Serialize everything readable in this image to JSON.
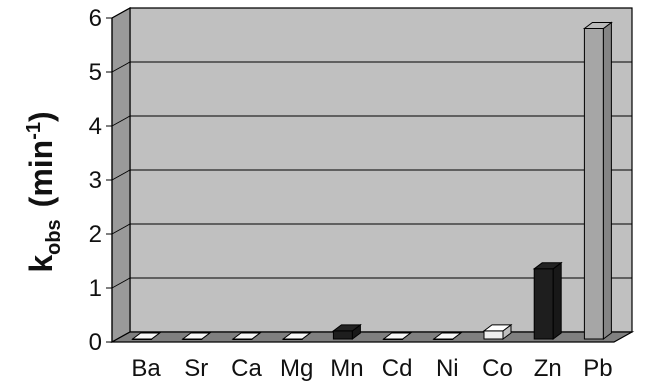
{
  "chart_data": {
    "type": "bar",
    "style": "3d-column",
    "categories": [
      "Ba",
      "Sr",
      "Ca",
      "Mg",
      "Mn",
      "Cd",
      "Ni",
      "Co",
      "Zn",
      "Pb"
    ],
    "values": [
      0.0,
      0.0,
      0.0,
      0.0,
      0.15,
      0.0,
      0.0,
      0.15,
      1.3,
      5.75
    ],
    "bar_colors": [
      "#dddddd",
      "#dddddd",
      "#dddddd",
      "#dddddd",
      "#1e1e1e",
      "#dddddd",
      "#dddddd",
      "#eeeeee",
      "#1e1e1e",
      "#a6a6a6"
    ],
    "title": "",
    "xlabel": "",
    "ylabel": {
      "main": "k",
      "subscript": "obs",
      "unit_open": "(min",
      "unit_sup": "-1",
      "unit_close": ")"
    },
    "ylim": [
      0,
      6
    ],
    "yticks": [
      "0",
      "1",
      "2",
      "3",
      "4",
      "5",
      "6"
    ],
    "grid": true,
    "legend": "none",
    "wall_color": "#c0c0c0",
    "floor_color": "#808080"
  }
}
